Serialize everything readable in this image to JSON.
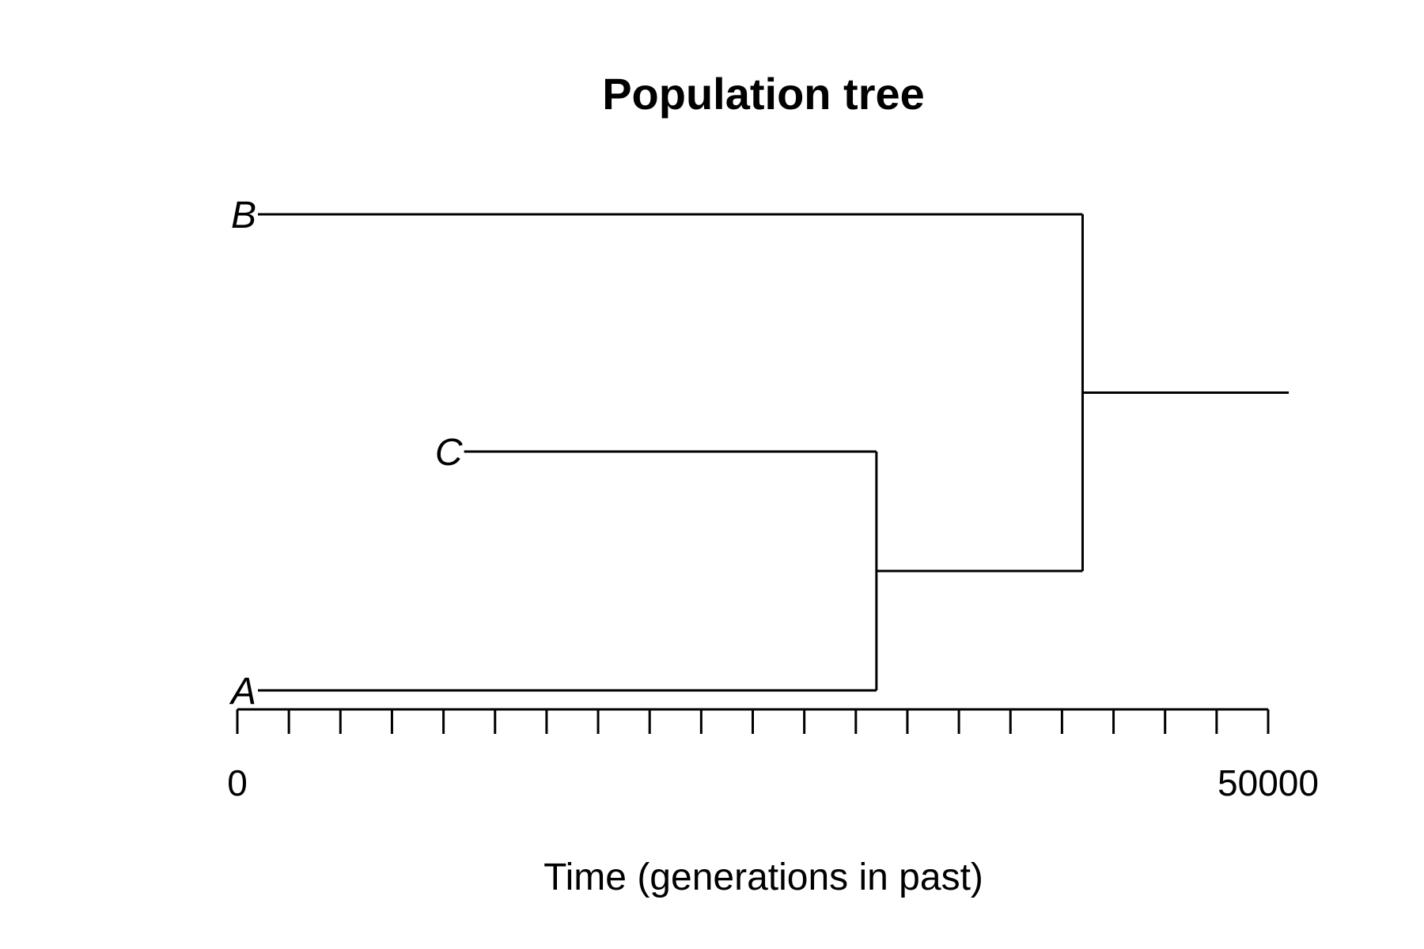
{
  "title": "Population tree",
  "xlabel": "Time (generations in past)",
  "axis": {
    "min": 0,
    "max": 50000,
    "minor_tick_count": 20,
    "tick_labels": [
      "0",
      "50000"
    ]
  },
  "tree": {
    "tips": [
      {
        "name": "B",
        "time": 0,
        "y_order": 3
      },
      {
        "name": "C",
        "time": 10000,
        "y_order": 2
      },
      {
        "name": "A",
        "time": 0,
        "y_order": 1
      }
    ],
    "nodes": [
      {
        "id": "AC",
        "children": [
          "C",
          "A"
        ],
        "time": 31000
      },
      {
        "id": "root",
        "children": [
          "B",
          "AC"
        ],
        "time": 41000,
        "root_branch_end": 51000
      }
    ]
  }
}
